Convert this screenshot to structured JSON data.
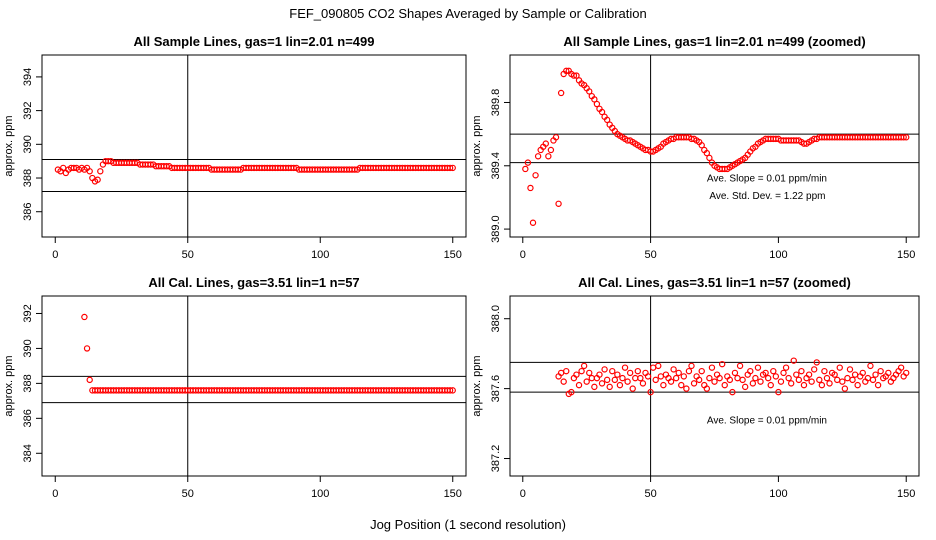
{
  "figure": {
    "title": "FEF_090805  CO2 Shapes Averaged by Sample or Calibration",
    "xlabel": "Jog Position (1 second resolution)"
  },
  "chart_data": [
    {
      "type": "scatter",
      "title": "All Sample Lines, gas=1 lin=2.01 n=499",
      "ylabel": "approx. ppm",
      "xlim": [
        -5,
        155
      ],
      "ylim": [
        384.5,
        395.3
      ],
      "xticks": [
        0,
        50,
        100,
        150
      ],
      "yticks": [
        386,
        388,
        390,
        392,
        394
      ],
      "hlines": [
        389.1,
        387.2
      ],
      "vlines": [
        50
      ],
      "marker_color": "#ff0000",
      "annotations": [],
      "x": [
        1,
        2,
        3,
        4,
        5,
        6,
        7,
        8,
        9,
        10,
        11,
        12,
        13,
        14,
        15,
        16,
        17,
        18,
        19,
        20,
        21,
        22,
        23,
        24,
        25,
        26,
        27,
        28,
        29,
        30,
        31,
        32,
        33,
        34,
        35,
        36,
        37,
        38,
        39,
        40,
        41,
        42,
        43,
        44,
        45,
        46,
        47,
        48,
        49,
        50,
        51,
        52,
        53,
        54,
        55,
        56,
        57,
        58,
        59,
        60,
        61,
        62,
        63,
        64,
        65,
        66,
        67,
        68,
        69,
        70,
        71,
        72,
        73,
        74,
        75,
        76,
        77,
        78,
        79,
        80,
        81,
        82,
        83,
        84,
        85,
        86,
        87,
        88,
        89,
        90,
        91,
        92,
        93,
        94,
        95,
        96,
        97,
        98,
        99,
        100,
        101,
        102,
        103,
        104,
        105,
        106,
        107,
        108,
        109,
        110,
        111,
        112,
        113,
        114,
        115,
        116,
        117,
        118,
        119,
        120,
        121,
        122,
        123,
        124,
        125,
        126,
        127,
        128,
        129,
        130,
        131,
        132,
        133,
        134,
        135,
        136,
        137,
        138,
        139,
        140,
        141,
        142,
        143,
        144,
        145,
        146,
        147,
        148,
        149,
        150
      ],
      "y": [
        388.5,
        388.4,
        388.6,
        388.3,
        388.5,
        388.6,
        388.6,
        388.6,
        388.5,
        388.6,
        388.5,
        388.6,
        388.4,
        388.0,
        387.8,
        387.9,
        388.4,
        388.8,
        389.0,
        389.0,
        389.0,
        388.9,
        388.9,
        388.9,
        388.9,
        388.9,
        388.9,
        388.9,
        388.9,
        388.9,
        388.9,
        388.8,
        388.8,
        388.8,
        388.8,
        388.8,
        388.8,
        388.7,
        388.7,
        388.7,
        388.7,
        388.7,
        388.7,
        388.6,
        388.6,
        388.6,
        388.6,
        388.6,
        388.6,
        388.6,
        388.6,
        388.6,
        388.6,
        388.6,
        388.6,
        388.6,
        388.6,
        388.6,
        388.5,
        388.5,
        388.5,
        388.5,
        388.5,
        388.5,
        388.5,
        388.5,
        388.5,
        388.5,
        388.5,
        388.5,
        388.6,
        388.6,
        388.6,
        388.6,
        388.6,
        388.6,
        388.6,
        388.6,
        388.6,
        388.6,
        388.6,
        388.6,
        388.6,
        388.6,
        388.6,
        388.6,
        388.6,
        388.6,
        388.6,
        388.6,
        388.6,
        388.5,
        388.5,
        388.5,
        388.5,
        388.5,
        388.5,
        388.5,
        388.5,
        388.5,
        388.5,
        388.5,
        388.5,
        388.5,
        388.5,
        388.5,
        388.5,
        388.5,
        388.5,
        388.5,
        388.5,
        388.5,
        388.5,
        388.5,
        388.6,
        388.6,
        388.6,
        388.6,
        388.6,
        388.6,
        388.6,
        388.6,
        388.6,
        388.6,
        388.6,
        388.6,
        388.6,
        388.6,
        388.6,
        388.6,
        388.6,
        388.6,
        388.6,
        388.6,
        388.6,
        388.6,
        388.6,
        388.6,
        388.6,
        388.6,
        388.6,
        388.6,
        388.6,
        388.6,
        388.6,
        388.6,
        388.6,
        388.6,
        388.6,
        388.6
      ]
    },
    {
      "type": "scatter",
      "title": "All Sample Lines, gas=1 lin=2.01 n=499 (zoomed)",
      "ylabel": "approx. ppm",
      "xlim": [
        -5,
        155
      ],
      "ylim": [
        388.95,
        390.1
      ],
      "xticks": [
        0,
        50,
        100,
        150
      ],
      "yticks": [
        389.0,
        389.4,
        389.8
      ],
      "hlines": [
        389.6,
        389.42
      ],
      "vlines": [
        50
      ],
      "marker_color": "#ff0000",
      "annotations": [
        {
          "text": "Ave. Slope =  0.01  ppm/min",
          "x": 72,
          "y": 389.3
        },
        {
          "text": "Ave. Std. Dev. =  1.22  ppm",
          "x": 73,
          "y": 389.19
        }
      ],
      "x": [
        1,
        2,
        3,
        4,
        5,
        6,
        7,
        8,
        9,
        10,
        11,
        12,
        13,
        14,
        15,
        16,
        17,
        18,
        19,
        20,
        21,
        22,
        23,
        24,
        25,
        26,
        27,
        28,
        29,
        30,
        31,
        32,
        33,
        34,
        35,
        36,
        37,
        38,
        39,
        40,
        41,
        42,
        43,
        44,
        45,
        46,
        47,
        48,
        49,
        50,
        51,
        52,
        53,
        54,
        55,
        56,
        57,
        58,
        59,
        60,
        61,
        62,
        63,
        64,
        65,
        66,
        67,
        68,
        69,
        70,
        71,
        72,
        73,
        74,
        75,
        76,
        77,
        78,
        79,
        80,
        81,
        82,
        83,
        84,
        85,
        86,
        87,
        88,
        89,
        90,
        91,
        92,
        93,
        94,
        95,
        96,
        97,
        98,
        99,
        100,
        101,
        102,
        103,
        104,
        105,
        106,
        107,
        108,
        109,
        110,
        111,
        112,
        113,
        114,
        115,
        116,
        117,
        118,
        119,
        120,
        121,
        122,
        123,
        124,
        125,
        126,
        127,
        128,
        129,
        130,
        131,
        132,
        133,
        134,
        135,
        136,
        137,
        138,
        139,
        140,
        141,
        142,
        143,
        144,
        145,
        146,
        147,
        148,
        149,
        150
      ],
      "y": [
        389.38,
        389.42,
        389.26,
        389.04,
        389.34,
        389.46,
        389.5,
        389.52,
        389.54,
        389.46,
        389.5,
        389.56,
        389.58,
        389.16,
        389.86,
        389.98,
        390.0,
        390.0,
        389.98,
        389.97,
        389.97,
        389.94,
        389.92,
        389.91,
        389.89,
        389.87,
        389.84,
        389.82,
        389.79,
        389.76,
        389.74,
        389.71,
        389.69,
        389.66,
        389.64,
        389.62,
        389.6,
        389.59,
        389.58,
        389.57,
        389.56,
        389.56,
        389.55,
        389.54,
        389.53,
        389.52,
        389.51,
        389.5,
        389.5,
        389.49,
        389.49,
        389.5,
        389.51,
        389.52,
        389.54,
        389.55,
        389.56,
        389.57,
        389.57,
        389.58,
        389.58,
        389.58,
        389.58,
        389.58,
        389.58,
        389.57,
        389.57,
        389.56,
        389.55,
        389.53,
        389.5,
        389.48,
        389.45,
        389.42,
        389.4,
        389.39,
        389.38,
        389.38,
        389.38,
        389.38,
        389.39,
        389.4,
        389.41,
        389.42,
        389.43,
        389.44,
        389.45,
        389.47,
        389.49,
        389.51,
        389.52,
        389.54,
        389.55,
        389.56,
        389.57,
        389.57,
        389.57,
        389.57,
        389.57,
        389.57,
        389.56,
        389.56,
        389.56,
        389.56,
        389.56,
        389.56,
        389.56,
        389.56,
        389.55,
        389.54,
        389.54,
        389.55,
        389.56,
        389.57,
        389.57,
        389.58,
        389.58,
        389.58,
        389.58,
        389.58,
        389.58,
        389.58,
        389.58,
        389.58,
        389.58,
        389.58,
        389.58,
        389.58,
        389.58,
        389.58,
        389.58,
        389.58,
        389.58,
        389.58,
        389.58,
        389.58,
        389.58,
        389.58,
        389.58,
        389.58,
        389.58,
        389.58,
        389.58,
        389.58,
        389.58,
        389.58,
        389.58,
        389.58,
        389.58,
        389.58
      ]
    },
    {
      "type": "scatter",
      "title": "All Cal. Lines, gas=3.51 lin=1 n=57",
      "ylabel": "approx. ppm",
      "xlim": [
        -5,
        155
      ],
      "ylim": [
        382.7,
        393.0
      ],
      "xticks": [
        0,
        50,
        100,
        150
      ],
      "yticks": [
        384,
        386,
        388,
        390,
        392
      ],
      "hlines": [
        388.4,
        386.9
      ],
      "vlines": [
        50
      ],
      "marker_color": "#ff0000",
      "annotations": [],
      "x": [
        11,
        12,
        13,
        14,
        15,
        16,
        17,
        18,
        19,
        20,
        21,
        22,
        23,
        24,
        25,
        26,
        27,
        28,
        29,
        30,
        31,
        32,
        33,
        34,
        35,
        36,
        37,
        38,
        39,
        40,
        41,
        42,
        43,
        44,
        45,
        46,
        47,
        48,
        49,
        50,
        51,
        52,
        53,
        54,
        55,
        56,
        57,
        58,
        59,
        60,
        61,
        62,
        63,
        64,
        65,
        66,
        67,
        68,
        69,
        70,
        71,
        72,
        73,
        74,
        75,
        76,
        77,
        78,
        79,
        80,
        81,
        82,
        83,
        84,
        85,
        86,
        87,
        88,
        89,
        90,
        91,
        92,
        93,
        94,
        95,
        96,
        97,
        98,
        99,
        100,
        101,
        102,
        103,
        104,
        105,
        106,
        107,
        108,
        109,
        110,
        111,
        112,
        113,
        114,
        115,
        116,
        117,
        118,
        119,
        120,
        121,
        122,
        123,
        124,
        125,
        126,
        127,
        128,
        129,
        130,
        131,
        132,
        133,
        134,
        135,
        136,
        137,
        138,
        139,
        140,
        141,
        142,
        143,
        144,
        145,
        146,
        147,
        148,
        149,
        150
      ],
      "y": [
        391.8,
        390.0,
        388.2,
        387.6,
        387.6,
        387.6,
        387.6,
        387.6,
        387.6,
        387.6,
        387.6,
        387.6,
        387.6,
        387.6,
        387.6,
        387.6,
        387.6,
        387.6,
        387.6,
        387.6,
        387.6,
        387.6,
        387.6,
        387.6,
        387.6,
        387.6,
        387.6,
        387.6,
        387.6,
        387.6,
        387.6,
        387.6,
        387.6,
        387.6,
        387.6,
        387.6,
        387.6,
        387.6,
        387.6,
        387.6,
        387.6,
        387.6,
        387.6,
        387.6,
        387.6,
        387.6,
        387.6,
        387.6,
        387.6,
        387.6,
        387.6,
        387.6,
        387.6,
        387.6,
        387.6,
        387.6,
        387.6,
        387.6,
        387.6,
        387.6,
        387.6,
        387.6,
        387.6,
        387.6,
        387.6,
        387.6,
        387.6,
        387.6,
        387.6,
        387.6,
        387.6,
        387.6,
        387.6,
        387.6,
        387.6,
        387.6,
        387.6,
        387.6,
        387.6,
        387.6,
        387.6,
        387.6,
        387.6,
        387.6,
        387.6,
        387.6,
        387.6,
        387.6,
        387.6,
        387.6,
        387.6,
        387.6,
        387.6,
        387.6,
        387.6,
        387.6,
        387.6,
        387.6,
        387.6,
        387.6,
        387.6,
        387.6,
        387.6,
        387.6,
        387.6,
        387.6,
        387.6,
        387.6,
        387.6,
        387.6,
        387.6,
        387.6,
        387.6,
        387.6,
        387.6,
        387.6,
        387.6,
        387.6,
        387.6,
        387.6,
        387.6,
        387.6,
        387.6,
        387.6,
        387.6,
        387.6,
        387.6,
        387.6,
        387.6,
        387.6,
        387.6,
        387.6,
        387.6,
        387.6,
        387.6,
        387.6,
        387.6,
        387.6,
        387.6,
        387.6
      ]
    },
    {
      "type": "scatter",
      "title": "All Cal. Lines, gas=3.51 lin=1 n=57 (zoomed)",
      "ylabel": "approx. ppm",
      "xlim": [
        -5,
        155
      ],
      "ylim": [
        387.1,
        388.13
      ],
      "xticks": [
        0,
        50,
        100,
        150
      ],
      "yticks": [
        387.2,
        387.6,
        388.0
      ],
      "hlines": [
        387.75,
        387.58
      ],
      "vlines": [
        50
      ],
      "marker_color": "#ff0000",
      "annotations": [
        {
          "text": "Ave. Slope =  0.01  ppm/min",
          "x": 72,
          "y": 387.4
        }
      ],
      "x": [
        14,
        15,
        16,
        17,
        18,
        19,
        20,
        21,
        22,
        23,
        24,
        25,
        26,
        27,
        28,
        29,
        30,
        31,
        32,
        33,
        34,
        35,
        36,
        37,
        38,
        39,
        40,
        41,
        42,
        43,
        44,
        45,
        46,
        47,
        48,
        49,
        50,
        51,
        52,
        53,
        54,
        55,
        56,
        57,
        58,
        59,
        60,
        61,
        62,
        63,
        64,
        65,
        66,
        67,
        68,
        69,
        70,
        71,
        72,
        73,
        74,
        75,
        76,
        77,
        78,
        79,
        80,
        81,
        82,
        83,
        84,
        85,
        86,
        87,
        88,
        89,
        90,
        91,
        92,
        93,
        94,
        95,
        96,
        97,
        98,
        99,
        100,
        101,
        102,
        103,
        104,
        105,
        106,
        107,
        108,
        109,
        110,
        111,
        112,
        113,
        114,
        115,
        116,
        117,
        118,
        119,
        120,
        121,
        122,
        123,
        124,
        125,
        126,
        127,
        128,
        129,
        130,
        131,
        132,
        133,
        134,
        135,
        136,
        137,
        138,
        139,
        140,
        141,
        142,
        143,
        144,
        145,
        146,
        147,
        148,
        149,
        150
      ],
      "y": [
        387.67,
        387.69,
        387.64,
        387.7,
        387.57,
        387.58,
        387.66,
        387.68,
        387.62,
        387.7,
        387.73,
        387.64,
        387.69,
        387.66,
        387.61,
        387.66,
        387.68,
        387.63,
        387.71,
        387.65,
        387.61,
        387.7,
        387.65,
        387.68,
        387.62,
        387.66,
        387.72,
        387.64,
        387.69,
        387.6,
        387.66,
        387.7,
        387.66,
        387.63,
        387.69,
        387.67,
        387.58,
        387.72,
        387.65,
        387.73,
        387.67,
        387.62,
        387.68,
        387.66,
        387.64,
        387.71,
        387.66,
        387.69,
        387.62,
        387.67,
        387.6,
        387.7,
        387.73,
        387.63,
        387.67,
        387.65,
        387.7,
        387.62,
        387.6,
        387.66,
        387.72,
        387.64,
        387.68,
        387.66,
        387.74,
        387.62,
        387.67,
        387.65,
        387.58,
        387.69,
        387.66,
        387.73,
        387.65,
        387.61,
        387.68,
        387.7,
        387.63,
        387.66,
        387.72,
        387.64,
        387.68,
        387.69,
        387.66,
        387.62,
        387.7,
        387.67,
        387.58,
        387.64,
        387.69,
        387.72,
        387.66,
        387.63,
        387.76,
        387.68,
        387.65,
        387.7,
        387.62,
        387.66,
        387.68,
        387.64,
        387.71,
        387.75,
        387.65,
        387.62,
        387.7,
        387.66,
        387.63,
        387.69,
        387.68,
        387.65,
        387.72,
        387.64,
        387.6,
        387.66,
        387.71,
        387.65,
        387.68,
        387.62,
        387.67,
        387.69,
        387.64,
        387.66,
        387.73,
        387.65,
        387.68,
        387.62,
        387.7,
        387.66,
        387.67,
        387.69,
        387.64,
        387.66,
        387.68,
        387.7,
        387.72,
        387.67,
        387.69
      ]
    }
  ]
}
